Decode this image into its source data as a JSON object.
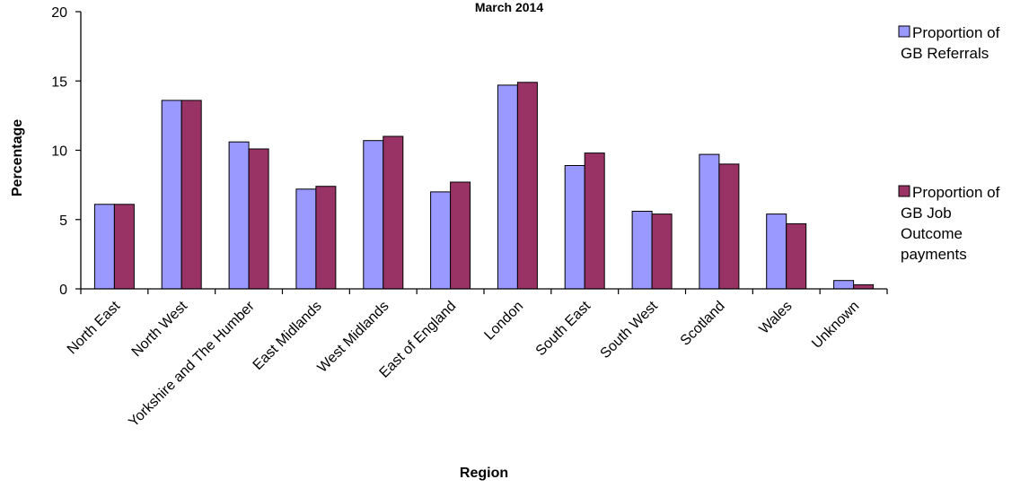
{
  "chart_data": {
    "type": "bar",
    "title": "March 2014",
    "xlabel": "Region",
    "ylabel": "Percentage",
    "ylim": [
      0,
      20
    ],
    "yticks": [
      0,
      5,
      10,
      15,
      20
    ],
    "grid": false,
    "legend_position": "right",
    "categories": [
      "North East",
      "North West",
      "Yorkshire and The Humber",
      "East Midlands",
      "West Midlands",
      "East of England",
      "London",
      "South East",
      "South West",
      "Scotland",
      "Wales",
      "Unknown"
    ],
    "series": [
      {
        "name": "Proportion of GB Referrals",
        "legend_lines": [
          "Proportion of",
          "GB Referrals"
        ],
        "color": "#9999FF",
        "values": [
          6.1,
          13.6,
          10.6,
          7.2,
          10.7,
          7.0,
          14.7,
          8.9,
          5.6,
          9.7,
          5.4,
          0.6
        ]
      },
      {
        "name": "Proportion of GB Job Outcome payments",
        "legend_lines": [
          "Proportion of",
          "GB Job",
          "Outcome",
          "payments"
        ],
        "color": "#993366",
        "values": [
          6.1,
          13.6,
          10.1,
          7.4,
          11.0,
          7.7,
          14.9,
          9.8,
          5.4,
          9.0,
          4.7,
          0.3
        ]
      }
    ]
  }
}
